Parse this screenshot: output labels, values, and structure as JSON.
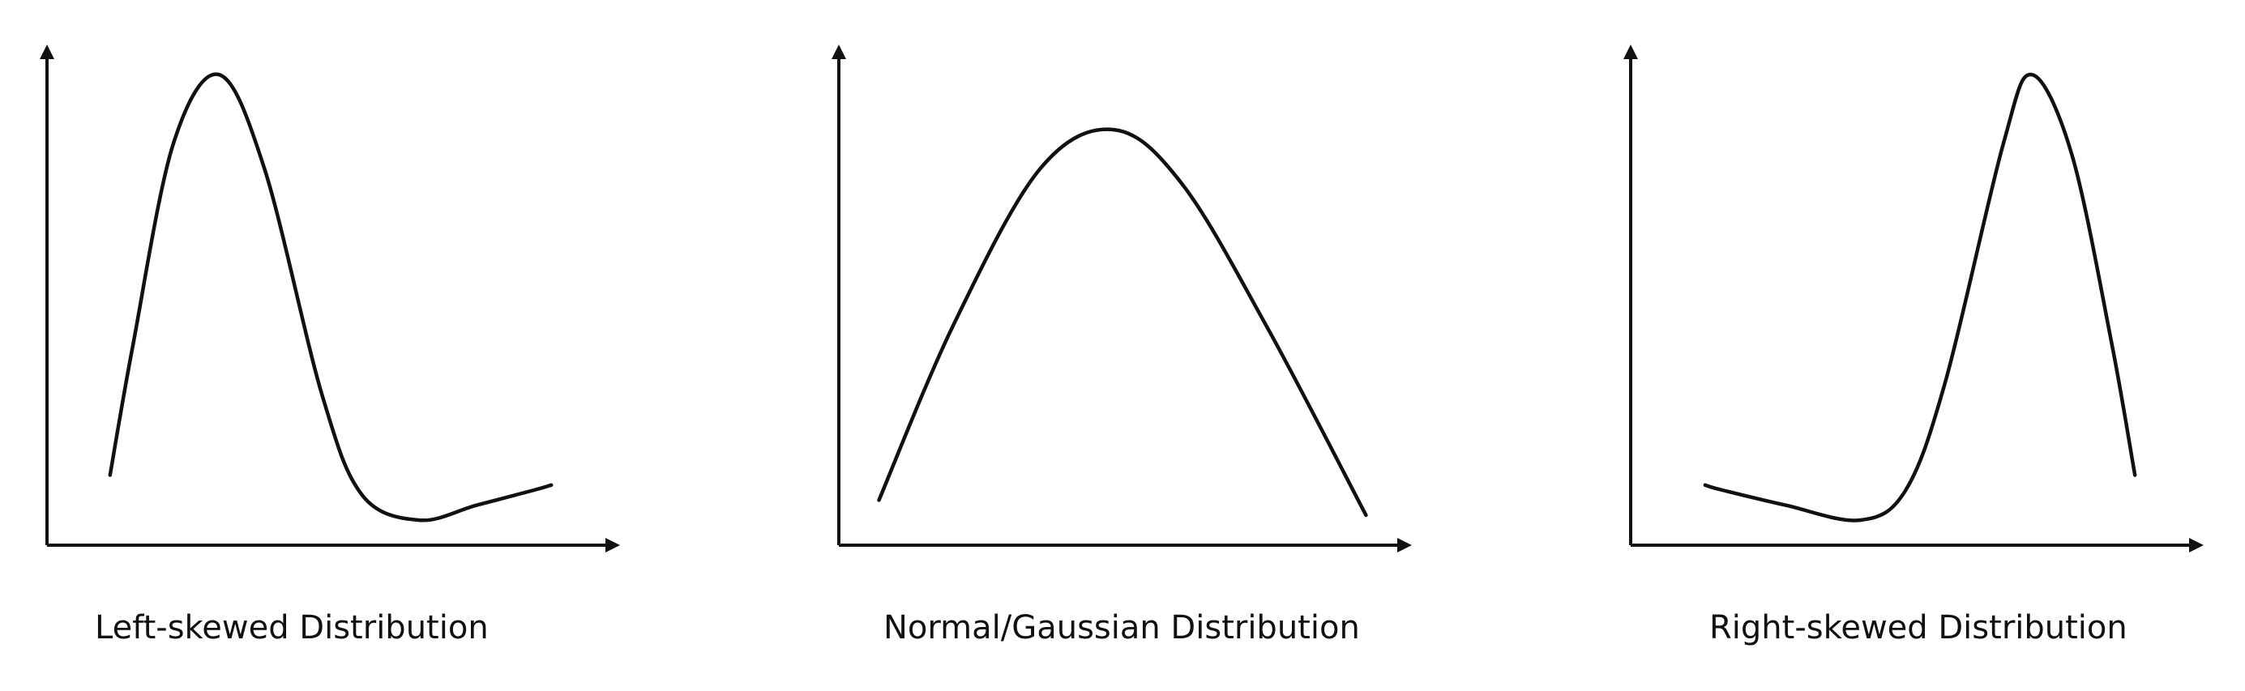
{
  "colors": {
    "line": "#111111",
    "background": "#ffffff"
  },
  "diagrams": [
    {
      "caption": "Left-skewed Distribution",
      "shape": "peak-left-long-right-tail",
      "curve_points": [
        [
          0.11,
          0.86
        ],
        [
          0.15,
          0.6
        ],
        [
          0.22,
          0.2
        ],
        [
          0.3,
          0.06
        ],
        [
          0.38,
          0.25
        ],
        [
          0.48,
          0.7
        ],
        [
          0.55,
          0.9
        ],
        [
          0.65,
          0.95
        ],
        [
          0.75,
          0.92
        ],
        [
          0.85,
          0.89
        ],
        [
          0.88,
          0.88
        ]
      ]
    },
    {
      "caption": "Normal/Gaussian Distribution",
      "shape": "symmetric-bell",
      "curve_points": [
        [
          0.07,
          0.91
        ],
        [
          0.2,
          0.56
        ],
        [
          0.35,
          0.25
        ],
        [
          0.48,
          0.17
        ],
        [
          0.6,
          0.28
        ],
        [
          0.75,
          0.57
        ],
        [
          0.92,
          0.94
        ]
      ]
    },
    {
      "caption": "Right-skewed Distribution",
      "shape": "peak-right-long-left-tail",
      "curve_points": [
        [
          0.13,
          0.88
        ],
        [
          0.16,
          0.89
        ],
        [
          0.27,
          0.92
        ],
        [
          0.4,
          0.95
        ],
        [
          0.48,
          0.89
        ],
        [
          0.55,
          0.67
        ],
        [
          0.65,
          0.2
        ],
        [
          0.7,
          0.06
        ],
        [
          0.77,
          0.22
        ],
        [
          0.84,
          0.6
        ],
        [
          0.88,
          0.86
        ]
      ]
    }
  ]
}
